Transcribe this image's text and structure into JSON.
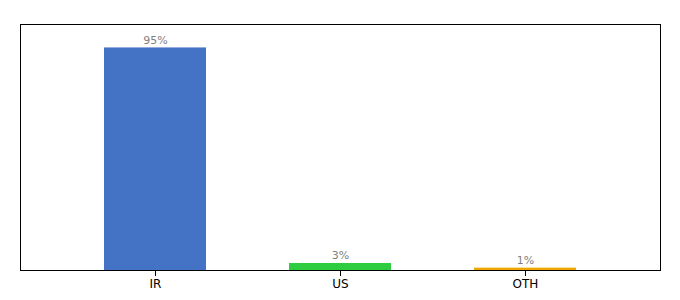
{
  "chart_data": {
    "type": "bar",
    "categories": [
      "IR",
      "US",
      "OTH"
    ],
    "values": [
      95,
      3,
      1
    ],
    "colors": [
      "#4472c4",
      "#2ecc40",
      "#f0a500"
    ],
    "ylim": [
      0,
      105
    ],
    "data_labels": true,
    "value_labels": [
      "95%",
      "3%",
      "1%"
    ],
    "tick_labels": "x"
  }
}
